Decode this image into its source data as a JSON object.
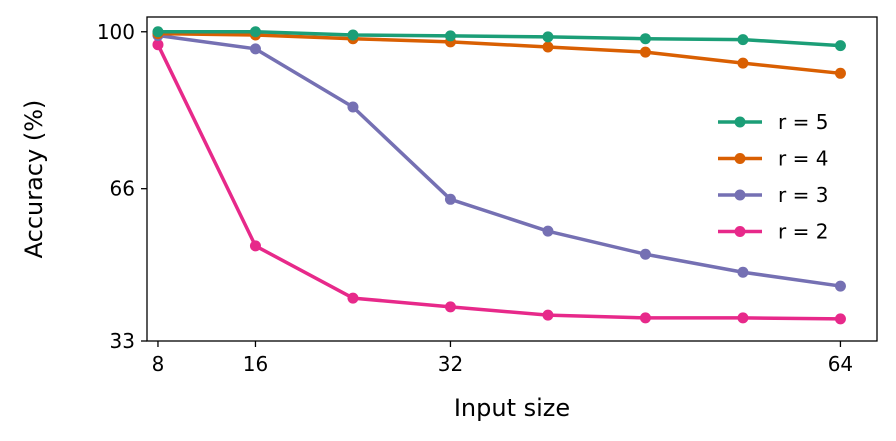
{
  "chart_data": {
    "type": "line",
    "title": "",
    "xlabel": "Input size",
    "ylabel": "Accuracy (%)",
    "x": [
      8,
      16,
      24,
      32,
      40,
      48,
      56,
      64
    ],
    "xticks": [
      8,
      16,
      32,
      64
    ],
    "yticks": [
      33,
      66,
      100
    ],
    "xlim": [
      7.1,
      67
    ],
    "ylim": [
      33,
      103.2
    ],
    "grid": false,
    "legend_position": "right",
    "series": [
      {
        "name": "r = 5",
        "color": "#1b9e77",
        "values": [
          100,
          100,
          99.3,
          99.1,
          98.9,
          98.5,
          98.3,
          97.0
        ]
      },
      {
        "name": "r = 4",
        "color": "#d95f02",
        "values": [
          99.6,
          99.3,
          98.5,
          97.8,
          96.7,
          95.6,
          93.2,
          91.0
        ]
      },
      {
        "name": "r = 3",
        "color": "#7570b3",
        "values": [
          99.2,
          96.3,
          83.7,
          63.7,
          56.8,
          51.8,
          47.9,
          44.9
        ]
      },
      {
        "name": "r = 2",
        "color": "#e7298a",
        "values": [
          97.2,
          53.6,
          42.3,
          40.4,
          38.6,
          38.0,
          38.0,
          37.8
        ]
      }
    ]
  }
}
